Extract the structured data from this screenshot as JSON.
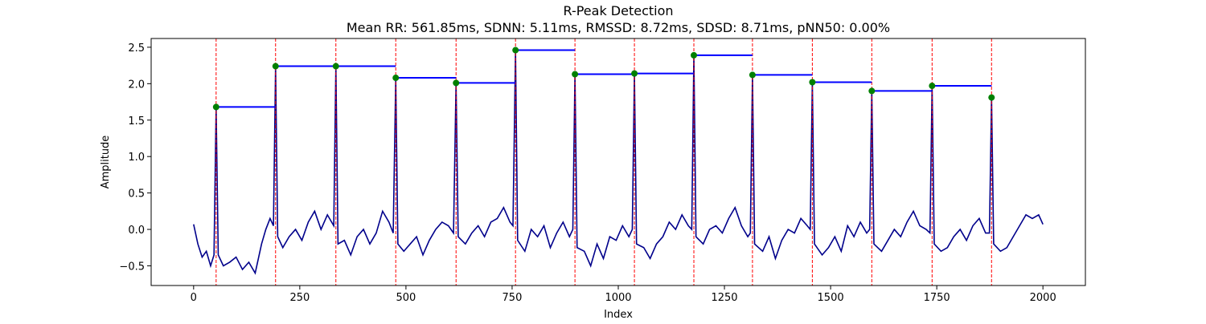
{
  "chart_data": {
    "type": "line",
    "title": "R-Peak Detection",
    "subtitle": "Mean RR: 561.85ms, SDNN: 5.11ms, RMSSD: 8.72ms, SDSD: 8.71ms, pNN50: 0.00%",
    "x_label": "Index",
    "y_label": "Amplitude",
    "color": "#00008b",
    "x": [
      0,
      10,
      20,
      30,
      40,
      48,
      53,
      58,
      70,
      85,
      100,
      115,
      130,
      145,
      160,
      170,
      180,
      188,
      193,
      198,
      210,
      225,
      240,
      255,
      270,
      285,
      300,
      315,
      330,
      335,
      340,
      355,
      370,
      385,
      400,
      415,
      430,
      445,
      460,
      470,
      476,
      481,
      495,
      510,
      525,
      540,
      555,
      570,
      585,
      600,
      612,
      618,
      623,
      640,
      655,
      670,
      685,
      700,
      715,
      730,
      745,
      752,
      758,
      763,
      780,
      795,
      810,
      825,
      840,
      855,
      870,
      885,
      893,
      898,
      903,
      920,
      935,
      950,
      965,
      980,
      995,
      1010,
      1025,
      1033,
      1038,
      1043,
      1060,
      1075,
      1090,
      1105,
      1120,
      1135,
      1150,
      1165,
      1173,
      1178,
      1183,
      1200,
      1215,
      1230,
      1245,
      1260,
      1275,
      1290,
      1305,
      1311,
      1316,
      1321,
      1340,
      1355,
      1370,
      1385,
      1400,
      1415,
      1430,
      1445,
      1452,
      1457,
      1462,
      1480,
      1495,
      1510,
      1525,
      1540,
      1555,
      1570,
      1585,
      1592,
      1597,
      1602,
      1620,
      1635,
      1650,
      1665,
      1680,
      1695,
      1710,
      1725,
      1734,
      1739,
      1744,
      1760,
      1775,
      1790,
      1805,
      1820,
      1835,
      1850,
      1865,
      1874,
      1879,
      1884,
      1900,
      1915,
      1930,
      1945,
      1960,
      1975,
      1990,
      2000
    ],
    "values": [
      0.07,
      -0.2,
      -0.38,
      -0.3,
      -0.5,
      -0.35,
      1.68,
      -0.35,
      -0.5,
      -0.45,
      -0.38,
      -0.55,
      -0.45,
      -0.6,
      -0.2,
      0.0,
      0.15,
      0.05,
      2.24,
      -0.1,
      -0.25,
      -0.1,
      0.0,
      -0.15,
      0.1,
      0.25,
      0.0,
      0.2,
      0.05,
      2.24,
      -0.2,
      -0.15,
      -0.35,
      -0.1,
      0.0,
      -0.2,
      -0.05,
      0.25,
      0.1,
      -0.05,
      2.08,
      -0.2,
      -0.3,
      -0.2,
      -0.1,
      -0.35,
      -0.15,
      0.0,
      0.1,
      0.05,
      -0.05,
      2.01,
      -0.1,
      -0.2,
      -0.05,
      0.05,
      -0.1,
      0.1,
      0.15,
      0.3,
      0.1,
      0.05,
      2.46,
      -0.15,
      -0.3,
      0.0,
      -0.1,
      0.05,
      -0.25,
      -0.05,
      0.1,
      -0.1,
      0.0,
      2.13,
      -0.25,
      -0.3,
      -0.5,
      -0.2,
      -0.4,
      -0.1,
      -0.15,
      0.05,
      -0.1,
      0.0,
      2.14,
      -0.2,
      -0.25,
      -0.4,
      -0.2,
      -0.1,
      0.1,
      0.0,
      0.2,
      0.05,
      0.0,
      2.39,
      -0.1,
      -0.2,
      0.0,
      0.05,
      -0.05,
      0.15,
      0.3,
      0.05,
      -0.1,
      -0.05,
      2.12,
      -0.2,
      -0.3,
      -0.1,
      -0.4,
      -0.15,
      0.0,
      -0.05,
      0.15,
      0.05,
      0.0,
      2.02,
      -0.2,
      -0.35,
      -0.25,
      -0.1,
      -0.3,
      0.05,
      -0.1,
      0.1,
      -0.05,
      0.0,
      1.9,
      -0.2,
      -0.3,
      -0.15,
      0.0,
      -0.1,
      0.1,
      0.25,
      0.05,
      0.0,
      -0.05,
      1.97,
      -0.2,
      -0.3,
      -0.25,
      -0.1,
      0.0,
      -0.15,
      0.05,
      0.15,
      -0.05,
      -0.05,
      1.81,
      -0.2,
      -0.3,
      -0.25,
      -0.1,
      0.05,
      0.2,
      0.15,
      0.2,
      0.07
    ],
    "peaks": {
      "x": [
        53,
        193,
        335,
        476,
        618,
        758,
        898,
        1038,
        1178,
        1316,
        1457,
        1597,
        1739,
        1879
      ],
      "values": [
        1.68,
        2.24,
        2.24,
        2.08,
        2.01,
        2.46,
        2.13,
        2.14,
        2.39,
        2.12,
        2.02,
        1.9,
        1.97,
        1.81
      ],
      "color": "green",
      "line_color": "red",
      "interval_color": "blue"
    },
    "xlim": [
      -100,
      2100
    ],
    "ylim": [
      -0.77,
      2.62
    ],
    "xticks": [
      0,
      250,
      500,
      750,
      1000,
      1250,
      1500,
      1750,
      2000
    ],
    "yticks": [
      {
        "value": -0.5,
        "label": "−0.5"
      },
      {
        "value": 0,
        "label": "0.0"
      },
      0.5,
      {
        "value": 1,
        "label": "1.0"
      },
      1.5,
      {
        "value": 2,
        "label": "2.0"
      },
      2.5
    ]
  }
}
